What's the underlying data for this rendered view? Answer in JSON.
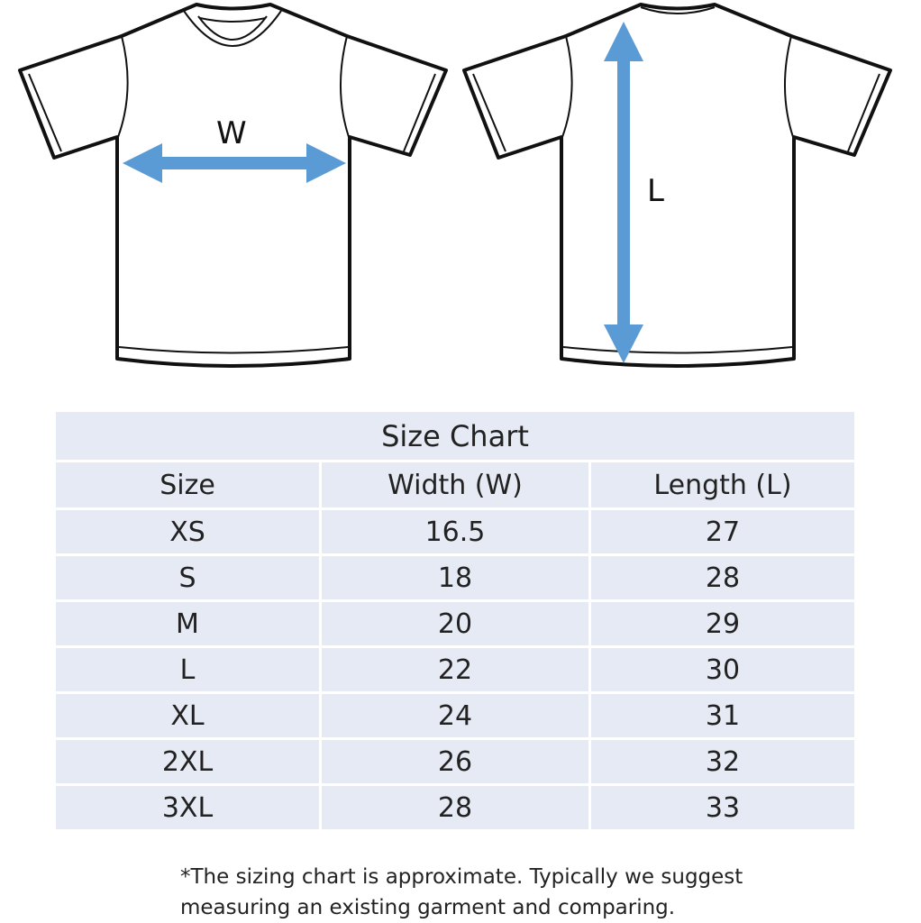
{
  "diagram": {
    "front_label": "W",
    "back_label": "L",
    "arrow_color": "#5b9bd5"
  },
  "table": {
    "title": "Size Chart",
    "headers": [
      "Size",
      "Width (W)",
      "Length (L)"
    ],
    "rows": [
      [
        "XS",
        "16.5",
        "27"
      ],
      [
        "S",
        "18",
        "28"
      ],
      [
        "M",
        "20",
        "29"
      ],
      [
        "L",
        "22",
        "30"
      ],
      [
        "XL",
        "24",
        "31"
      ],
      [
        "2XL",
        "26",
        "32"
      ],
      [
        "3XL",
        "28",
        "33"
      ]
    ],
    "fill_color": "#e6eaf4"
  },
  "note": {
    "line1": "*The sizing chart is approximate. Typically we suggest",
    "line2": "measuring an existing garment and comparing."
  }
}
